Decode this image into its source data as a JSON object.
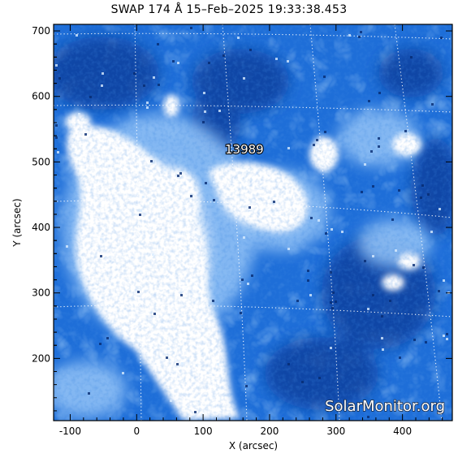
{
  "title": "SWAP 174 Å 15–Feb–2025 19:33:38.453",
  "axes": {
    "xlabel": "X (arcsec)",
    "ylabel": "Y (arcsec)",
    "xlim": [
      -125,
      475
    ],
    "ylim": [
      105,
      710
    ],
    "xticks": [
      -100,
      0,
      100,
      200,
      300,
      400
    ],
    "yticks": [
      200,
      300,
      400,
      500,
      600,
      700
    ]
  },
  "image": {
    "colormap": "blue",
    "grid": "dotted heliographic grid"
  },
  "active_region": {
    "label": "13989",
    "x": 162,
    "y": 513
  },
  "watermark": "SolarMonitor.org"
}
